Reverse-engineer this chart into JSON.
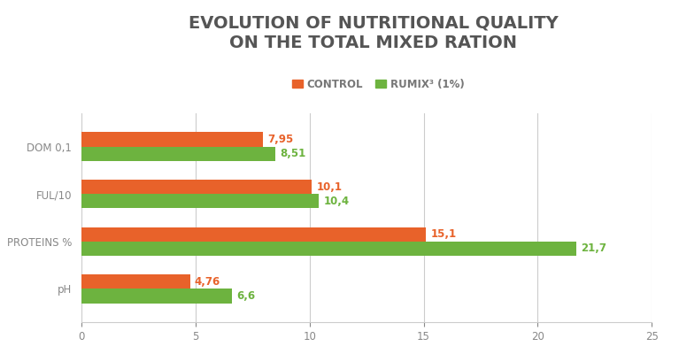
{
  "title_line1": "EVOLUTION OF NUTRITIONAL QUALITY",
  "title_line2": "ON THE TOTAL MIXED RATION",
  "categories_display": [
    "DOM 0,1",
    "FUL/10",
    "PROTEINS %",
    "pH"
  ],
  "control_values": [
    7.95,
    10.1,
    15.1,
    4.76
  ],
  "rumix_values": [
    8.51,
    10.4,
    21.7,
    6.6
  ],
  "control_labels": [
    "7,95",
    "10,1",
    "15,1",
    "4,76"
  ],
  "rumix_labels": [
    "8,51",
    "10,4",
    "21,7",
    "6,6"
  ],
  "control_color": "#E8622A",
  "rumix_color": "#6DB33F",
  "legend_control": "CONTROL",
  "legend_rumix": "RUMIX³ (1%)",
  "xlim": [
    0,
    25
  ],
  "xticks": [
    0,
    5,
    10,
    15,
    20,
    25
  ],
  "bar_height": 0.3,
  "background_color": "#FFFFFF",
  "grid_color": "#CCCCCC",
  "title_color": "#555555",
  "label_color_control": "#E8622A",
  "label_color_rumix": "#6DB33F",
  "title_fontsize": 14,
  "label_fontsize": 8.5,
  "tick_fontsize": 8.5,
  "legend_fontsize": 8.5
}
